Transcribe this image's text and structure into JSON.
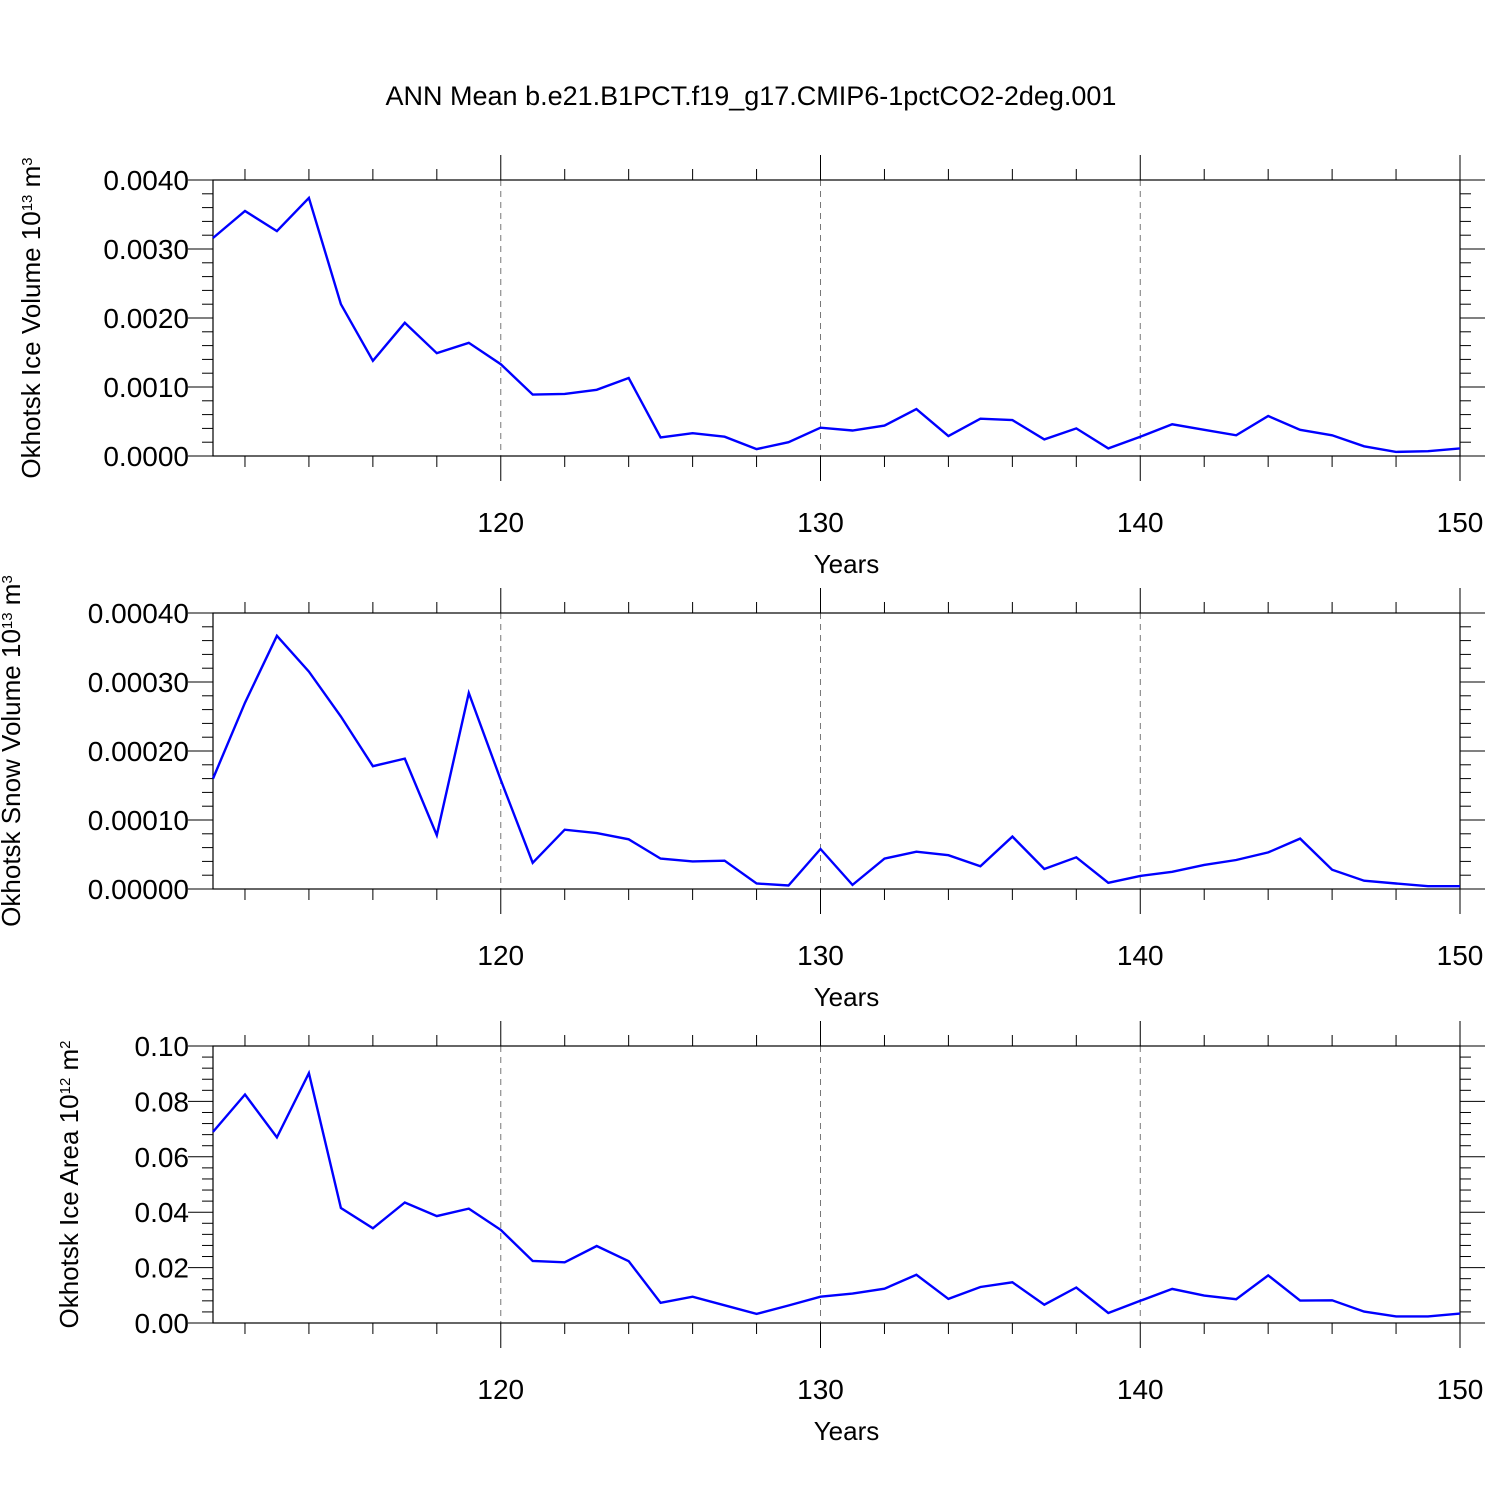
{
  "title": "ANN Mean b.e21.B1PCT.f19_g17.CMIP6-1pctCO2-2deg.001",
  "colors": {
    "line": "#0000ff",
    "axis": "#000000",
    "grid": "#777777"
  },
  "chart_data": [
    {
      "type": "line",
      "ylabel": {
        "main": "Okhotsk Ice Volume 10",
        "exp": "13",
        "unit": " m",
        "unit_exp": "3"
      },
      "xlabel": "Years",
      "xlim": [
        111,
        150
      ],
      "ylim": [
        0,
        0.004
      ],
      "x_ticks": [
        "120",
        "130",
        "140",
        "150"
      ],
      "y_ticks": [
        "0.0000",
        "0.0010",
        "0.0020",
        "0.0030",
        "0.0040"
      ],
      "grid": "vertical dashed at major x ticks",
      "x": [
        111,
        112,
        113,
        114,
        115,
        116,
        117,
        118,
        119,
        120,
        121,
        122,
        123,
        124,
        125,
        126,
        127,
        128,
        129,
        130,
        131,
        132,
        133,
        134,
        135,
        136,
        137,
        138,
        139,
        140,
        141,
        142,
        143,
        144,
        145,
        146,
        147,
        148,
        149,
        150
      ],
      "values": [
        0.00316,
        0.00355,
        0.00326,
        0.00374,
        0.0022,
        0.00138,
        0.00193,
        0.00149,
        0.00164,
        0.00133,
        0.00089,
        0.0009,
        0.00096,
        0.00113,
        0.00027,
        0.00033,
        0.00028,
        0.0001,
        0.0002,
        0.00041,
        0.00037,
        0.00044,
        0.00068,
        0.00029,
        0.00054,
        0.00052,
        0.00024,
        0.0004,
        0.00011,
        0.00028,
        0.00046,
        0.00038,
        0.0003,
        0.00058,
        0.00038,
        0.0003,
        0.00014,
        6e-05,
        7e-05,
        0.00011
      ]
    },
    {
      "type": "line",
      "ylabel": {
        "main": "Okhotsk Snow Volume 10",
        "exp": "13",
        "unit": " m",
        "unit_exp": "3"
      },
      "xlabel": "Years",
      "xlim": [
        111,
        150
      ],
      "ylim": [
        0,
        0.0004
      ],
      "x_ticks": [
        "120",
        "130",
        "140",
        "150"
      ],
      "y_ticks": [
        "0.00000",
        "0.00010",
        "0.00020",
        "0.00030",
        "0.00040"
      ],
      "grid": "vertical dashed at major x ticks",
      "x": [
        111,
        112,
        113,
        114,
        115,
        116,
        117,
        118,
        119,
        120,
        121,
        122,
        123,
        124,
        125,
        126,
        127,
        128,
        129,
        130,
        131,
        132,
        133,
        134,
        135,
        136,
        137,
        138,
        139,
        140,
        141,
        142,
        143,
        144,
        145,
        146,
        147,
        148,
        149,
        150
      ],
      "values": [
        0.00016,
        0.00027,
        0.000367,
        0.000315,
        0.00025,
        0.000178,
        0.000189,
        7.8e-05,
        0.000284,
        0.000158,
        3.8e-05,
        8.6e-05,
        8.1e-05,
        7.2e-05,
        4.4e-05,
        4e-05,
        4.1e-05,
        8e-06,
        5e-06,
        5.8e-05,
        6e-06,
        4.4e-05,
        5.4e-05,
        4.9e-05,
        3.3e-05,
        7.6e-05,
        2.9e-05,
        4.6e-05,
        9e-06,
        1.9e-05,
        2.5e-05,
        3.5e-05,
        4.2e-05,
        5.3e-05,
        7.3e-05,
        2.8e-05,
        1.2e-05,
        8e-06,
        4e-06,
        4e-06
      ]
    },
    {
      "type": "line",
      "ylabel": {
        "main": "Okhotsk Ice Area 10",
        "exp": "12",
        "unit": " m",
        "unit_exp": "2"
      },
      "xlabel": "Years",
      "xlim": [
        111,
        150
      ],
      "ylim": [
        0,
        0.1
      ],
      "x_ticks": [
        "120",
        "130",
        "140",
        "150"
      ],
      "y_ticks": [
        "0.00",
        "0.02",
        "0.04",
        "0.06",
        "0.08",
        "0.10"
      ],
      "grid": "vertical dashed at major x ticks",
      "x": [
        111,
        112,
        113,
        114,
        115,
        116,
        117,
        118,
        119,
        120,
        121,
        122,
        123,
        124,
        125,
        126,
        127,
        128,
        129,
        130,
        131,
        132,
        133,
        134,
        135,
        136,
        137,
        138,
        139,
        140,
        141,
        142,
        143,
        144,
        145,
        146,
        147,
        148,
        149,
        150
      ],
      "values": [
        0.069,
        0.0825,
        0.067,
        0.0902,
        0.0415,
        0.0342,
        0.0435,
        0.0386,
        0.0413,
        0.0336,
        0.0224,
        0.0219,
        0.0278,
        0.0223,
        0.0073,
        0.0095,
        0.0064,
        0.0033,
        0.0063,
        0.0095,
        0.0106,
        0.0124,
        0.0174,
        0.0087,
        0.013,
        0.0147,
        0.0066,
        0.0128,
        0.0036,
        0.008,
        0.0123,
        0.0099,
        0.0086,
        0.0172,
        0.0081,
        0.0082,
        0.0041,
        0.0024,
        0.0024,
        0.0034
      ]
    }
  ]
}
